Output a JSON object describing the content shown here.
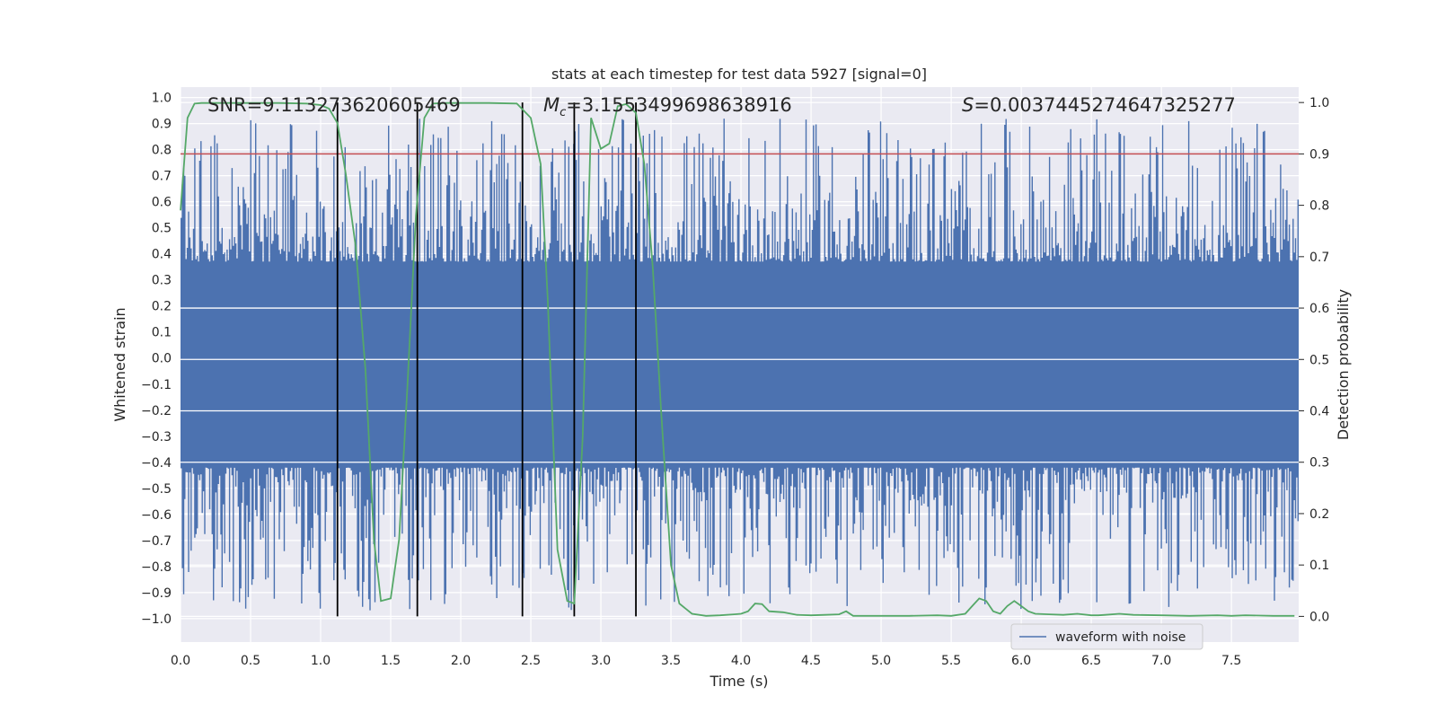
{
  "chart_data": {
    "type": "line",
    "title": "stats at each timestep for test data 5927 [signal=0]",
    "xlabel": "Time (s)",
    "ylabel_left": "Whitened strain",
    "ylabel_right": "Detection probability",
    "xlim": [
      0.0,
      7.98
    ],
    "ylim_left": [
      -1.09,
      1.04
    ],
    "ylim_right": [
      -0.05,
      1.03
    ],
    "x_ticks": [
      "0.0",
      "0.5",
      "1.0",
      "1.5",
      "2.0",
      "2.5",
      "3.0",
      "3.5",
      "4.0",
      "4.5",
      "5.0",
      "5.5",
      "6.0",
      "6.5",
      "7.0",
      "7.5"
    ],
    "x_tick_values": [
      0.0,
      0.5,
      1.0,
      1.5,
      2.0,
      2.5,
      3.0,
      3.5,
      4.0,
      4.5,
      5.0,
      5.5,
      6.0,
      6.5,
      7.0,
      7.5
    ],
    "y_left_ticks": [
      "1.0",
      "0.9",
      "0.8",
      "0.7",
      "0.6",
      "0.5",
      "0.4",
      "0.3",
      "0.2",
      "0.1",
      "0.0",
      "−0.1",
      "−0.2",
      "−0.3",
      "−0.4",
      "−0.5",
      "−0.6",
      "−0.7",
      "−0.8",
      "−0.9",
      "−1.0"
    ],
    "y_left_tick_values": [
      1.0,
      0.9,
      0.8,
      0.7,
      0.6,
      0.5,
      0.4,
      0.3,
      0.2,
      0.1,
      0.0,
      -0.1,
      -0.2,
      -0.3,
      -0.4,
      -0.5,
      -0.6,
      -0.7,
      -0.8,
      -0.9,
      -1.0
    ],
    "y_right_ticks": [
      "1.0",
      "0.9",
      "0.8",
      "0.7",
      "0.6",
      "0.5",
      "0.4",
      "0.3",
      "0.2",
      "0.1",
      "0.0"
    ],
    "y_right_tick_values": [
      1.0,
      0.9,
      0.8,
      0.7,
      0.6,
      0.5,
      0.4,
      0.3,
      0.2,
      0.1,
      0.0
    ],
    "annotations": {
      "snr": "SNR=9.113273620605469",
      "mc_symbol": "M",
      "mc_sub": "c",
      "mc_value": "=3.1553499698638916",
      "s_symbol": "S",
      "s_value": "=0.0037445274647325277"
    },
    "legend": {
      "label": "waveform with noise",
      "placement": "lower-right"
    },
    "threshold": {
      "value": 0.9,
      "axis": "right",
      "color": "#c44e52"
    },
    "vertical_markers": [
      1.12,
      1.69,
      2.44,
      2.81,
      3.25
    ],
    "series": [
      {
        "name": "waveform with noise",
        "axis": "left",
        "color": "#4c72b0",
        "envelope_pos": 0.37,
        "envelope_neg": -0.42,
        "noise_seed": 5927,
        "sample_count": 900
      },
      {
        "name": "Detection probability",
        "axis": "right",
        "color": "#55a868",
        "x": [
          0.0,
          0.05,
          0.1,
          0.15,
          0.2,
          0.3,
          0.5,
          0.7,
          0.9,
          1.0,
          1.06,
          1.12,
          1.18,
          1.25,
          1.32,
          1.38,
          1.43,
          1.5,
          1.56,
          1.62,
          1.68,
          1.74,
          1.8,
          1.9,
          2.0,
          2.2,
          2.4,
          2.5,
          2.57,
          2.62,
          2.69,
          2.76,
          2.81,
          2.87,
          2.93,
          3.0,
          3.06,
          3.12,
          3.18,
          3.25,
          3.31,
          3.37,
          3.43,
          3.5,
          3.56,
          3.65,
          3.75,
          3.85,
          3.95,
          4.0,
          4.05,
          4.1,
          4.15,
          4.2,
          4.3,
          4.4,
          4.5,
          4.6,
          4.7,
          4.75,
          4.8,
          4.9,
          5.0,
          5.2,
          5.4,
          5.5,
          5.6,
          5.65,
          5.7,
          5.75,
          5.8,
          5.85,
          5.9,
          5.95,
          6.0,
          6.05,
          6.1,
          6.2,
          6.3,
          6.4,
          6.5,
          6.55,
          6.6,
          6.7,
          6.8,
          7.0,
          7.2,
          7.4,
          7.5,
          7.6,
          7.8,
          7.95
        ],
        "values": [
          0.79,
          0.97,
          0.998,
          0.999,
          0.999,
          0.999,
          0.999,
          0.999,
          0.998,
          0.995,
          0.988,
          0.96,
          0.86,
          0.72,
          0.48,
          0.15,
          0.03,
          0.035,
          0.15,
          0.45,
          0.78,
          0.97,
          0.998,
          0.999,
          0.999,
          0.999,
          0.998,
          0.97,
          0.88,
          0.62,
          0.13,
          0.03,
          0.025,
          0.35,
          0.97,
          0.91,
          0.92,
          0.993,
          0.997,
          0.98,
          0.88,
          0.68,
          0.4,
          0.1,
          0.025,
          0.005,
          0.001,
          0.002,
          0.004,
          0.005,
          0.01,
          0.025,
          0.024,
          0.01,
          0.008,
          0.003,
          0.002,
          0.003,
          0.004,
          0.01,
          0.001,
          0.001,
          0.001,
          0.001,
          0.002,
          0.001,
          0.005,
          0.02,
          0.035,
          0.03,
          0.01,
          0.005,
          0.02,
          0.03,
          0.02,
          0.01,
          0.005,
          0.004,
          0.003,
          0.005,
          0.002,
          0.002,
          0.003,
          0.005,
          0.003,
          0.002,
          0.001,
          0.002,
          0.001,
          0.002,
          0.001,
          0.001
        ]
      }
    ]
  }
}
